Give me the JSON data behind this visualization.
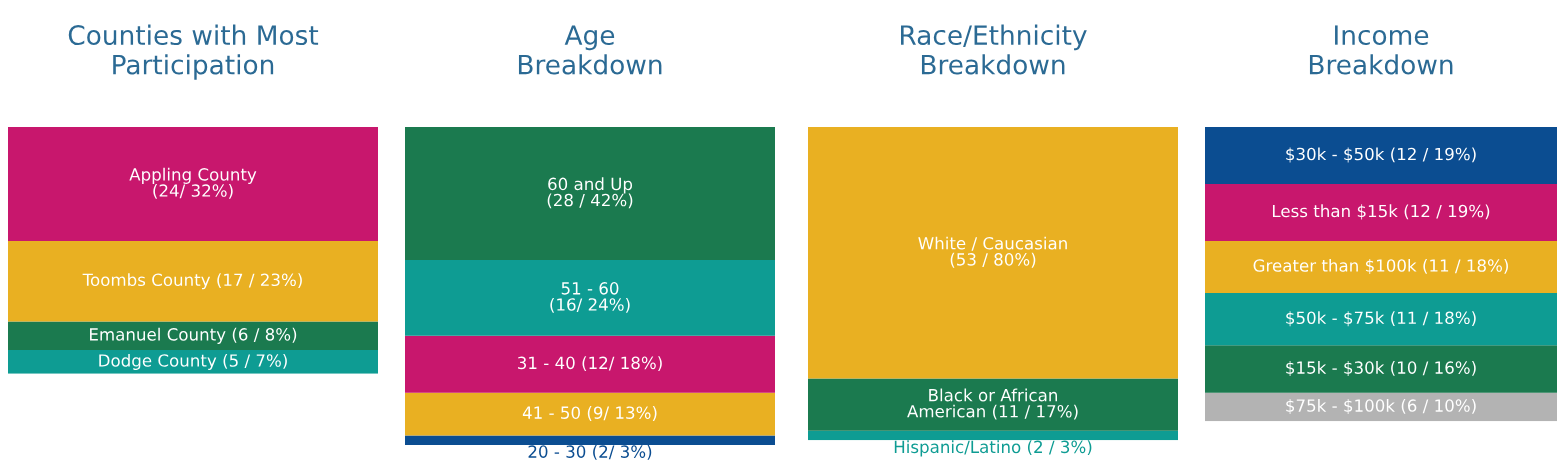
{
  "chart_data": [
    {
      "type": "bar",
      "stacked": true,
      "title": "Counties with Most\nParticipation",
      "categories": [
        null
      ],
      "series": [
        {
          "color": "#0e9c93",
          "values": [
            5
          ],
          "value_labels": [
            "Dodge County (5 / 7%)"
          ]
        },
        {
          "color": "#1b7a4f",
          "values": [
            6
          ],
          "value_labels": [
            "Emanuel County (6 / 8%)"
          ]
        },
        {
          "color": "#e9b022",
          "values": [
            17
          ],
          "value_labels": [
            "Toombs County (17 / 23%)"
          ]
        },
        {
          "color": "#c8176d",
          "values": [
            24
          ],
          "value_labels": [
            "Appling County\n(24/ 32%)"
          ]
        }
      ]
    },
    {
      "type": "bar",
      "stacked": true,
      "title": "Age\nBreakdown",
      "categories": [
        null
      ],
      "series": [
        {
          "color": "#0b4d91",
          "values": [
            2
          ],
          "value_labels": [
            "20 - 30 (2/ 3%)"
          ]
        },
        {
          "color": "#e9b022",
          "values": [
            9
          ],
          "value_labels": [
            "41 - 50 (9/ 13%)"
          ]
        },
        {
          "color": "#c8176d",
          "values": [
            12
          ],
          "value_labels": [
            "31 - 40 (12/ 18%)"
          ]
        },
        {
          "color": "#0e9c93",
          "values": [
            16
          ],
          "value_labels": [
            "51 - 60\n(16/ 24%)"
          ]
        },
        {
          "color": "#1b7a4f",
          "values": [
            28
          ],
          "value_labels": [
            "60 and Up\n(28 / 42%)"
          ]
        }
      ]
    },
    {
      "type": "bar",
      "stacked": true,
      "title": "Race/Ethnicity\nBreakdown",
      "categories": [
        null
      ],
      "series": [
        {
          "color": "#0e9c93",
          "values": [
            2
          ],
          "value_labels": [
            "Hispanic/Latino (2 / 3%)"
          ]
        },
        {
          "color": "#1b7a4f",
          "values": [
            11
          ],
          "value_labels": [
            "Black or African\nAmerican (11 / 17%)"
          ]
        },
        {
          "color": "#e9b022",
          "values": [
            53
          ],
          "value_labels": [
            "White / Caucasian\n(53 / 80%)"
          ]
        }
      ]
    },
    {
      "type": "bar",
      "stacked": true,
      "title": "Income\nBreakdown",
      "categories": [
        null
      ],
      "series": [
        {
          "color": "#b3b3b3",
          "values": [
            6
          ],
          "value_labels": [
            "$75k - $100k (6 / 10%)"
          ]
        },
        {
          "color": "#1b7a4f",
          "values": [
            10
          ],
          "value_labels": [
            "$15k - $30k (10 / 16%)"
          ]
        },
        {
          "color": "#0e9c93",
          "values": [
            11
          ],
          "value_labels": [
            "$50k - $75k (11 / 18%)"
          ]
        },
        {
          "color": "#e9b022",
          "values": [
            11
          ],
          "value_labels": [
            "Greater than $100k (11 / 18%)"
          ]
        },
        {
          "color": "#c8176d",
          "values": [
            12
          ],
          "value_labels": [
            "Less than $15k (12 / 19%)"
          ]
        },
        {
          "color": "#0b4d91",
          "values": [
            12
          ],
          "value_labels": [
            "$30k - $50k (12 / 19%)"
          ]
        }
      ]
    }
  ]
}
